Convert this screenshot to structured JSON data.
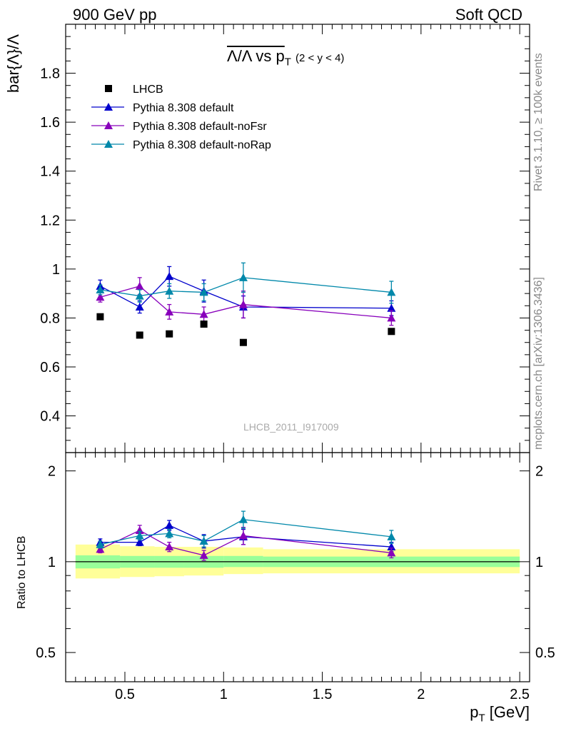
{
  "header": {
    "left": "900 GeV pp",
    "right": "Soft QCD"
  },
  "side_labels": {
    "rivet": "Rivet 3.1.10, ≥ 100k events",
    "mcplots": "mcplots.cern.ch [arXiv:1306.3436]"
  },
  "watermark": "LHCB_2011_I917009",
  "plot_title": {
    "main": "Λ/Λ vs p",
    "sub": "T",
    "range": "(2 < y < 4)"
  },
  "xlabel_main": "p",
  "xlabel_sub": "T",
  "xlabel_unit": "[GeV]",
  "colors": {
    "lhcb": "#000000",
    "default": "#0000cc",
    "noFsr": "#8800bb",
    "noRap": "#0088aa",
    "band_inner": "#99ff99",
    "band_outer": "#ffff99"
  },
  "chart_data": [
    {
      "type": "scatter",
      "panel": "main",
      "ylabel": "bar{Λ}/Λ",
      "xlim": [
        0.2,
        2.55
      ],
      "ylim": [
        0.25,
        2.0
      ],
      "x_ticks": [
        0.5,
        1,
        1.5,
        2,
        2.5
      ],
      "y_ticks": [
        0.4,
        0.6,
        0.8,
        1,
        1.2,
        1.4,
        1.6,
        1.8
      ],
      "y_tick_labels": [
        "0.4",
        "0.6",
        "0.8",
        "1",
        "1.2",
        "1.4",
        "1.6",
        "1.8"
      ],
      "legend_position": "top-left",
      "series": [
        {
          "name": "LHCB",
          "key": "lhcb",
          "marker": "square",
          "x": [
            0.375,
            0.575,
            0.725,
            0.9,
            1.1,
            1.85
          ],
          "y": [
            0.805,
            0.73,
            0.735,
            0.775,
            0.7,
            0.745
          ],
          "err": [
            0.01,
            0.01,
            0.01,
            0.01,
            0.01,
            0.01
          ]
        },
        {
          "name": "Pythia 8.308 default",
          "key": "default",
          "marker": "triangle",
          "x": [
            0.375,
            0.575,
            0.725,
            0.9,
            1.1,
            1.85
          ],
          "y": [
            0.93,
            0.845,
            0.97,
            0.91,
            0.845,
            0.84
          ],
          "err": [
            0.025,
            0.025,
            0.04,
            0.045,
            0.045,
            0.03
          ]
        },
        {
          "name": "Pythia 8.308 default-noFsr",
          "key": "noFsr",
          "marker": "triangle",
          "x": [
            0.375,
            0.575,
            0.725,
            0.9,
            1.1,
            1.85
          ],
          "y": [
            0.885,
            0.93,
            0.825,
            0.815,
            0.855,
            0.8
          ],
          "err": [
            0.02,
            0.035,
            0.03,
            0.03,
            0.055,
            0.03
          ]
        },
        {
          "name": "Pythia 8.308 default-noRap",
          "key": "noRap",
          "marker": "triangle",
          "x": [
            0.375,
            0.575,
            0.725,
            0.9,
            1.1,
            1.85
          ],
          "y": [
            0.915,
            0.89,
            0.91,
            0.905,
            0.965,
            0.905
          ],
          "err": [
            0.02,
            0.025,
            0.03,
            0.035,
            0.06,
            0.045
          ]
        }
      ]
    },
    {
      "type": "scatter",
      "panel": "ratio",
      "ylabel": "Ratio to LHCB",
      "xlim": [
        0.2,
        2.55
      ],
      "ylim": [
        0.4,
        2.3
      ],
      "y_scale": "log",
      "x_ticks": [
        0.5,
        1,
        1.5,
        2,
        2.5
      ],
      "x_tick_labels": [
        "0.5",
        "1",
        "1.5",
        "2",
        "2.5"
      ],
      "y_ticks": [
        0.5,
        1,
        2
      ],
      "y_tick_labels": [
        "0.5",
        "1",
        "2"
      ],
      "reference_line": 1,
      "bands": [
        {
          "x0": 0.25,
          "x1": 0.475,
          "inner": [
            0.95,
            1.05
          ],
          "outer": [
            0.88,
            1.14
          ]
        },
        {
          "x0": 0.475,
          "x1": 0.65,
          "inner": [
            0.955,
            1.045
          ],
          "outer": [
            0.89,
            1.125
          ]
        },
        {
          "x0": 0.65,
          "x1": 0.8,
          "inner": [
            0.955,
            1.045
          ],
          "outer": [
            0.895,
            1.12
          ]
        },
        {
          "x0": 0.8,
          "x1": 1.0,
          "inner": [
            0.955,
            1.045
          ],
          "outer": [
            0.9,
            1.12
          ]
        },
        {
          "x0": 1.0,
          "x1": 1.2,
          "inner": [
            0.96,
            1.045
          ],
          "outer": [
            0.91,
            1.115
          ]
        },
        {
          "x0": 1.2,
          "x1": 2.5,
          "inner": [
            0.96,
            1.04
          ],
          "outer": [
            0.915,
            1.1
          ]
        }
      ],
      "series": [
        {
          "key": "default",
          "x": [
            0.375,
            0.575,
            0.725,
            0.9,
            1.1,
            1.85
          ],
          "y": [
            1.16,
            1.16,
            1.32,
            1.17,
            1.21,
            1.12
          ],
          "err": [
            0.03,
            0.03,
            0.05,
            0.06,
            0.07,
            0.04
          ]
        },
        {
          "key": "noFsr",
          "x": [
            0.375,
            0.575,
            0.725,
            0.9,
            1.1,
            1.85
          ],
          "y": [
            1.1,
            1.27,
            1.12,
            1.05,
            1.22,
            1.07
          ],
          "err": [
            0.03,
            0.05,
            0.04,
            0.04,
            0.08,
            0.04
          ]
        },
        {
          "key": "noRap",
          "x": [
            0.375,
            0.575,
            0.725,
            0.9,
            1.1,
            1.85
          ],
          "y": [
            1.14,
            1.22,
            1.24,
            1.17,
            1.38,
            1.21
          ],
          "err": [
            0.03,
            0.04,
            0.04,
            0.05,
            0.09,
            0.06
          ]
        }
      ]
    }
  ]
}
